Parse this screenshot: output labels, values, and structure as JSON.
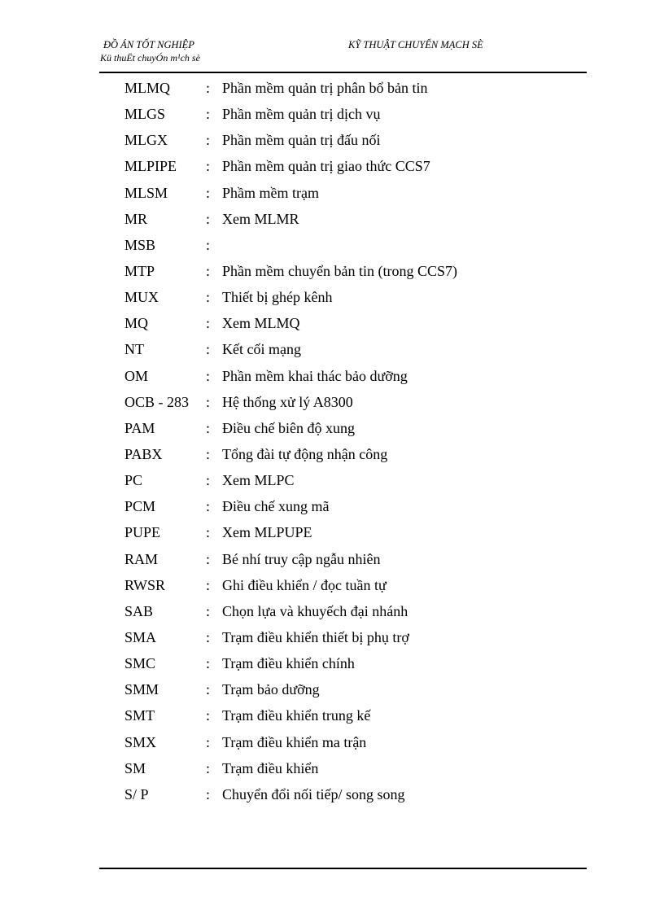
{
  "header": {
    "left_title": "ĐỒ ÁN TỐT NGHIỆP",
    "left_subtitle": "Kü thuËt chuyÓn m¹ch sè",
    "right_title": "KỸ THUẬT  CHUYỂN MẠCH SÈ"
  },
  "entries": [
    {
      "abbr": "MLMQ",
      "desc": "Phần mềm quản trị phân bổ bản tin"
    },
    {
      "abbr": "MLGS",
      "desc": "Phần mềm quản trị dịch vụ"
    },
    {
      "abbr": "MLGX",
      "desc": "Phần mềm quản trị đấu nối"
    },
    {
      "abbr": "MLPIPE",
      "desc": "Phần mềm quản trị giao thức CCS7"
    },
    {
      "abbr": "MLSM",
      "desc": "Phầm mềm trạm"
    },
    {
      "abbr": "MR",
      "desc": "Xem MLMR"
    },
    {
      "abbr": "MSB",
      "desc": ""
    },
    {
      "abbr": "MTP",
      "desc": "Phần mềm chuyển bản tin (trong CCS7)"
    },
    {
      "abbr": "MUX",
      "desc": "Thiết bị ghép kênh"
    },
    {
      "abbr": "MQ",
      "desc": "Xem MLMQ"
    },
    {
      "abbr": "NT",
      "desc": "Kết cối mạng"
    },
    {
      "abbr": "OM",
      "desc": "Phần mềm khai thác bảo dưỡng"
    },
    {
      "abbr": "OCB - 283",
      "desc": "Hệ thống xử lý A8300"
    },
    {
      "abbr": "PAM",
      "desc": "Điều chế biên độ xung"
    },
    {
      "abbr": "PABX",
      "desc": "Tổng đài tự động nhận công"
    },
    {
      "abbr": "PC",
      "desc": "Xem MLPC"
    },
    {
      "abbr": "PCM",
      "desc": "Điều chế xung mã"
    },
    {
      "abbr": "PUPE",
      "desc": "Xem MLPUPE"
    },
    {
      "abbr": "RAM",
      "desc": "Bé nhí truy cập ngẫu nhiên"
    },
    {
      "abbr": "RWSR",
      "desc": "Ghi điều khiển / đọc tuần tự"
    },
    {
      "abbr": "SAB",
      "desc": "Chọn lựa và khuyếch đại nhánh"
    },
    {
      "abbr": "SMA",
      "desc": "Trạm điều khiển thiết bị phụ trợ"
    },
    {
      "abbr": "SMC",
      "desc": "Trạm điều khiển chính"
    },
    {
      "abbr": "SMM",
      "desc": "Trạm bảo dưỡng"
    },
    {
      "abbr": "SMT",
      "desc": "Trạm điều khiển trung kế"
    },
    {
      "abbr": "SMX",
      "desc": "Trạm điều khiển ma trận"
    },
    {
      "abbr": "SM",
      "desc": "Trạm điều khiển"
    },
    {
      "abbr": "S/ P",
      "desc": "Chuyển đổi nối tiếp/ song song"
    }
  ],
  "separator": ":"
}
